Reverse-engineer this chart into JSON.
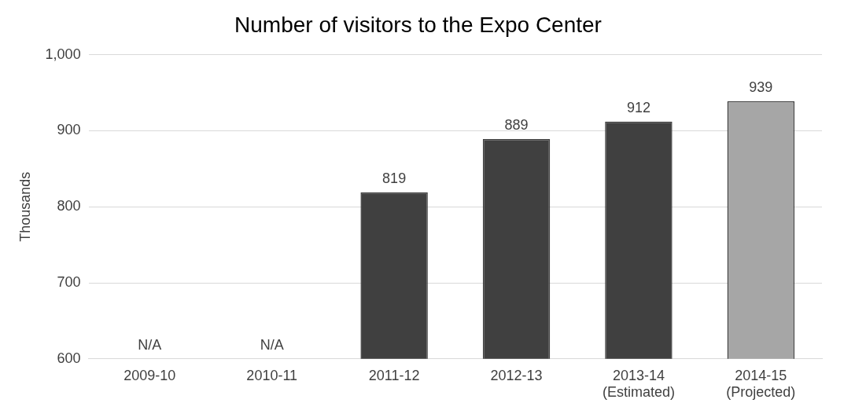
{
  "chart_data": {
    "type": "bar",
    "title": "Number of visitors to the Expo Center",
    "ylabel": "Thousands",
    "categories": [
      "2009-10",
      "2010-11",
      "2011-12",
      "2012-13",
      "2013-14 (Estimated)",
      "2014-15 (Projected)"
    ],
    "values": [
      null,
      null,
      819,
      889,
      912,
      939
    ],
    "value_labels": [
      "N/A",
      "N/A",
      "819",
      "889",
      "912",
      "939"
    ],
    "colors": [
      "#404040",
      "#404040",
      "#404040",
      "#404040",
      "#404040",
      "#a6a6a6"
    ],
    "ylim": [
      600,
      1000
    ],
    "yticks": [
      600,
      700,
      800,
      900,
      {
        "value": 1000,
        "label": "1,000"
      }
    ],
    "grid": "y",
    "legend": false
  }
}
